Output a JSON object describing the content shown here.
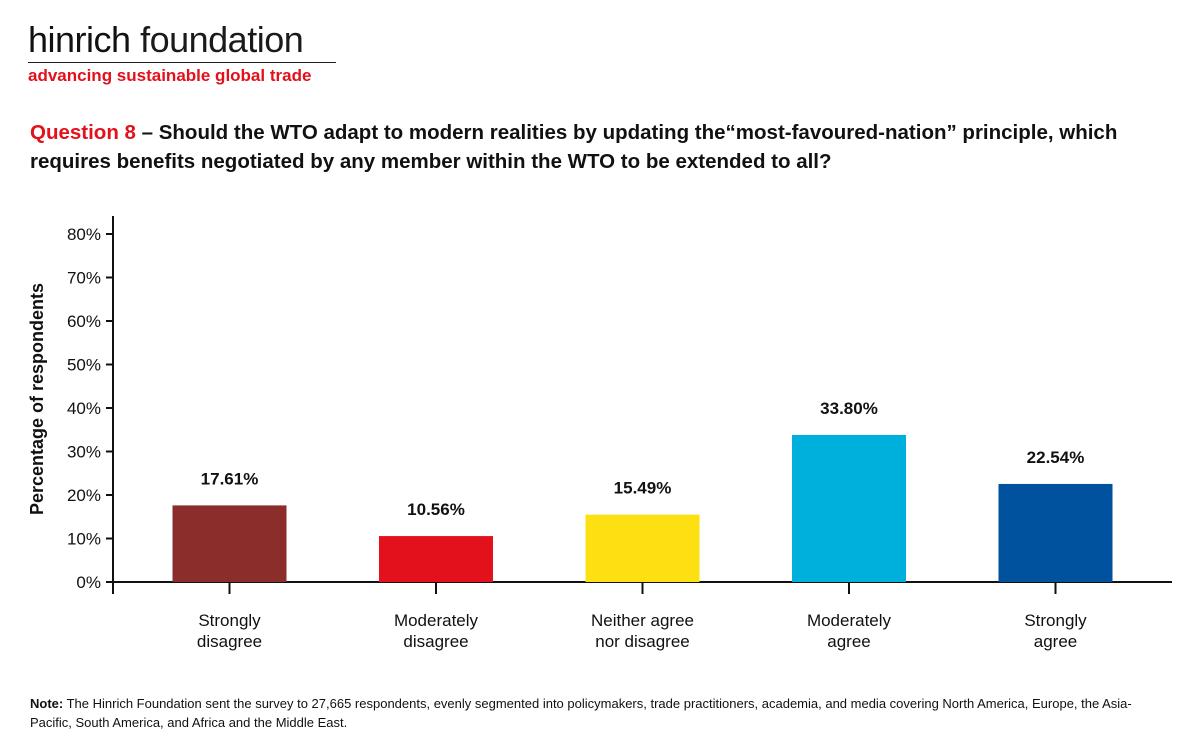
{
  "brand": {
    "name_part1": "hinrich",
    "name_part2": "foundation",
    "tagline": "advancing sustainable global trade"
  },
  "question": {
    "number": "Question 8",
    "text": " – Should the WTO adapt to modern realities by updating the“most-favoured-nation” principle, which requires benefits negotiated by any member within the WTO to be extended to all?"
  },
  "note": {
    "label": "Note:",
    "text": " The Hinrich Foundation sent the survey to 27,665 respondents, evenly segmented into policymakers, trade practitioners, academia, and media covering North America, Europe, the Asia-Pacific, South America, and Africa and the Middle East."
  },
  "chart_data": {
    "type": "bar",
    "title": "",
    "xlabel": "",
    "ylabel": "Percentage of respondents",
    "ylim": [
      0,
      80
    ],
    "yticks": [
      "0%",
      "10%",
      "20%",
      "30%",
      "40%",
      "50%",
      "60%",
      "70%",
      "80%"
    ],
    "grid": false,
    "categories": [
      [
        "Strongly",
        "disagree"
      ],
      [
        "Moderately",
        "disagree"
      ],
      [
        "Neither agree",
        "nor disagree"
      ],
      [
        "Moderately",
        "agree"
      ],
      [
        "Strongly",
        "agree"
      ]
    ],
    "values": [
      17.61,
      10.56,
      15.49,
      33.8,
      22.54
    ],
    "value_labels": [
      "17.61%",
      "10.56%",
      "15.49%",
      "33.80%",
      "22.54%"
    ],
    "colors": [
      "#8b2e2b",
      "#e2111b",
      "#fde012",
      "#00b0dc",
      "#00519e"
    ]
  }
}
